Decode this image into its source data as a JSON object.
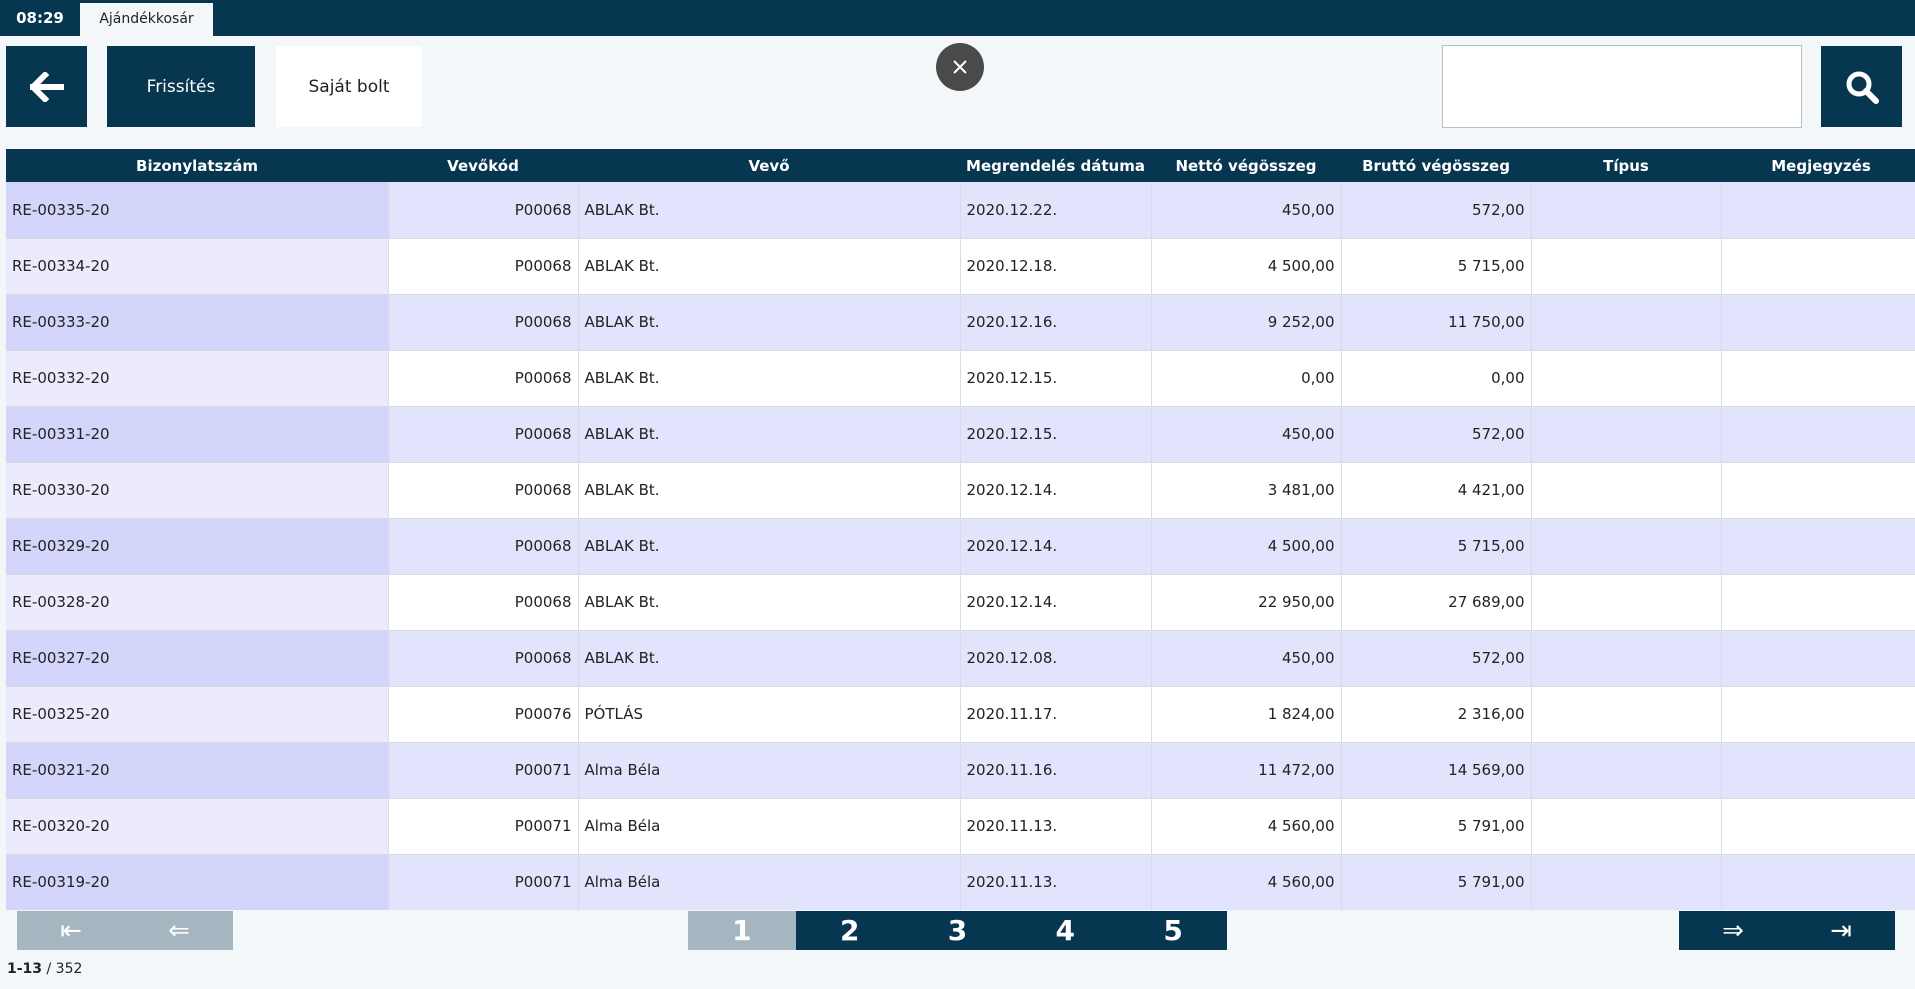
{
  "header": {
    "time": "08:29",
    "tab": "Ajándékkosár"
  },
  "toolbar": {
    "back_icon": "arrow-left-icon",
    "refresh_label": "Frissítés",
    "shop_label": "Saját bolt",
    "close_icon": "close-icon",
    "search_value": "",
    "search_icon": "search-icon"
  },
  "table": {
    "columns": [
      "Bizonylatszám",
      "Vevőkód",
      "Vevő",
      "Megrendelés dátuma",
      "Nettó végösszeg",
      "Bruttó végösszeg",
      "Típus",
      "Megjegyzés"
    ],
    "rows": [
      [
        "RE-00335-20",
        "P00068",
        "ABLAK Bt.",
        "2020.12.22.",
        "450,00",
        "572,00",
        "",
        ""
      ],
      [
        "RE-00334-20",
        "P00068",
        "ABLAK Bt.",
        "2020.12.18.",
        "4 500,00",
        "5 715,00",
        "",
        ""
      ],
      [
        "RE-00333-20",
        "P00068",
        "ABLAK Bt.",
        "2020.12.16.",
        "9 252,00",
        "11 750,00",
        "",
        ""
      ],
      [
        "RE-00332-20",
        "P00068",
        "ABLAK Bt.",
        "2020.12.15.",
        "0,00",
        "0,00",
        "",
        ""
      ],
      [
        "RE-00331-20",
        "P00068",
        "ABLAK Bt.",
        "2020.12.15.",
        "450,00",
        "572,00",
        "",
        ""
      ],
      [
        "RE-00330-20",
        "P00068",
        "ABLAK Bt.",
        "2020.12.14.",
        "3 481,00",
        "4 421,00",
        "",
        ""
      ],
      [
        "RE-00329-20",
        "P00068",
        "ABLAK Bt.",
        "2020.12.14.",
        "4 500,00",
        "5 715,00",
        "",
        ""
      ],
      [
        "RE-00328-20",
        "P00068",
        "ABLAK Bt.",
        "2020.12.14.",
        "22 950,00",
        "27 689,00",
        "",
        ""
      ],
      [
        "RE-00327-20",
        "P00068",
        "ABLAK Bt.",
        "2020.12.08.",
        "450,00",
        "572,00",
        "",
        ""
      ],
      [
        "RE-00325-20",
        "P00076",
        "PÓTLÁS",
        "2020.11.17.",
        "1 824,00",
        "2 316,00",
        "",
        ""
      ],
      [
        "RE-00321-20",
        "P00071",
        "Alma Béla",
        "2020.11.16.",
        "11 472,00",
        "14 569,00",
        "",
        ""
      ],
      [
        "RE-00320-20",
        "P00071",
        "Alma Béla",
        "2020.11.13.",
        "4 560,00",
        "5 791,00",
        "",
        ""
      ],
      [
        "RE-00319-20",
        "P00071",
        "Alma Béla",
        "2020.11.13.",
        "4 560,00",
        "5 791,00",
        "",
        ""
      ]
    ]
  },
  "pagination": {
    "first_glyph": "⇤",
    "prev_glyph": "⇐",
    "pages": [
      "1",
      "2",
      "3",
      "4",
      "5"
    ],
    "active_page": "1",
    "next_glyph": "⇒",
    "last_glyph": "⇥",
    "range": "1-13",
    "separator": " / ",
    "total": "352"
  }
}
